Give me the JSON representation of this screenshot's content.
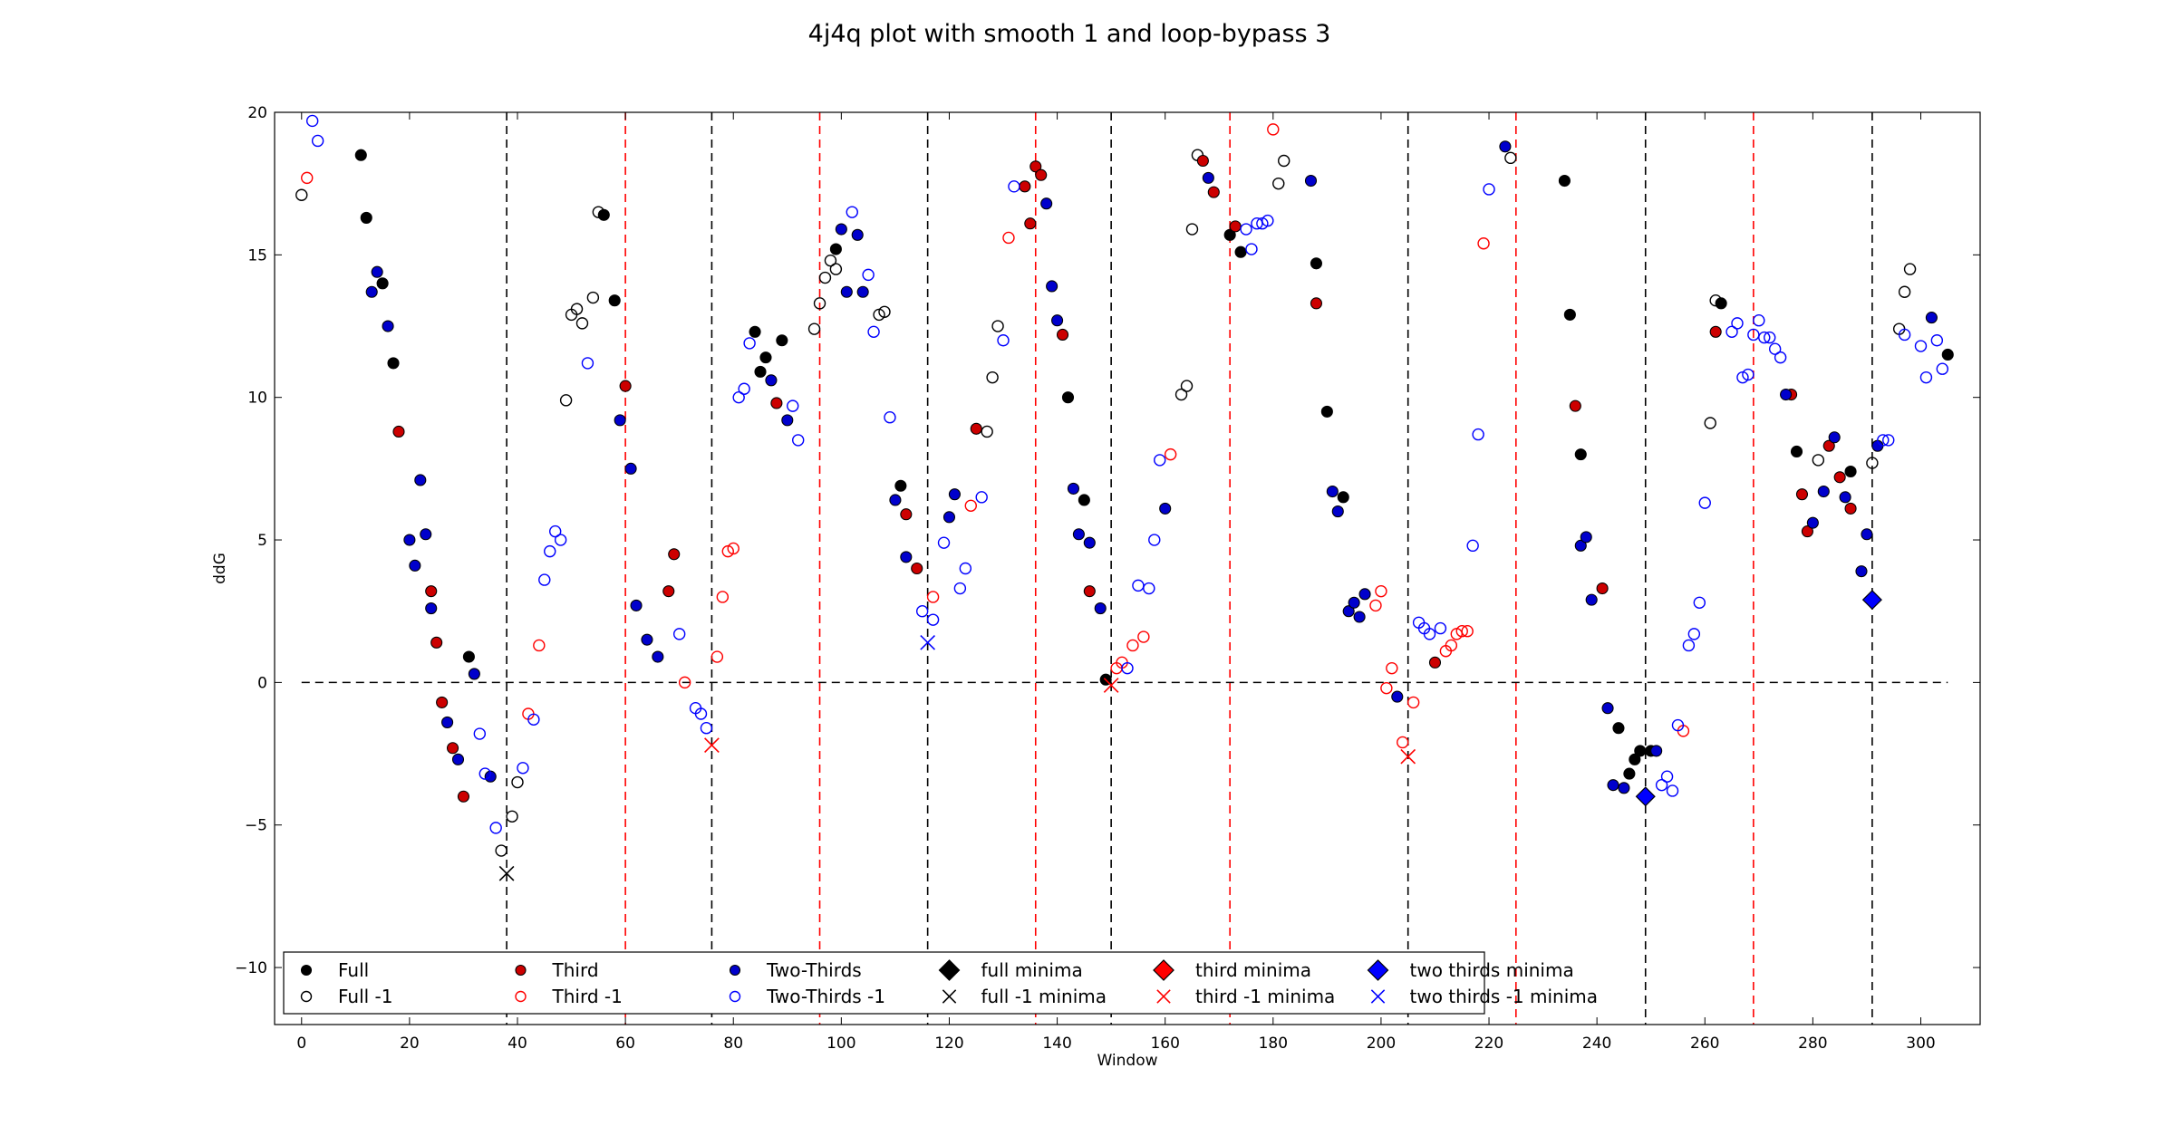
{
  "chart_data": {
    "type": "scatter",
    "title": "4j4q plot with smooth 1 and loop-bypass 3",
    "xlabel": "Window",
    "ylabel": "ddG",
    "xlim": [
      -5,
      311
    ],
    "ylim": [
      -12,
      20
    ],
    "xticks": [
      0,
      20,
      40,
      60,
      80,
      100,
      120,
      140,
      160,
      180,
      200,
      220,
      240,
      260,
      280,
      300
    ],
    "yticks": [
      -10,
      -5,
      0,
      5,
      10,
      15,
      20
    ],
    "grid": false,
    "legend_position": "lower-left",
    "legend_columns": 6,
    "horizontal_line": {
      "y": 0,
      "color": "#000000",
      "style": "dashed"
    },
    "vertical_lines": [
      {
        "x": 38,
        "color": "#000000"
      },
      {
        "x": 60,
        "color": "#ff0000"
      },
      {
        "x": 76,
        "color": "#000000"
      },
      {
        "x": 96,
        "color": "#ff0000"
      },
      {
        "x": 116,
        "color": "#000000"
      },
      {
        "x": 136,
        "color": "#ff0000"
      },
      {
        "x": 150,
        "color": "#000000"
      },
      {
        "x": 172,
        "color": "#ff0000"
      },
      {
        "x": 205,
        "color": "#000000"
      },
      {
        "x": 225,
        "color": "#ff0000"
      },
      {
        "x": 249,
        "color": "#000000"
      },
      {
        "x": 269,
        "color": "#ff0000"
      },
      {
        "x": 291,
        "color": "#000000"
      }
    ],
    "series": [
      {
        "name": "Full",
        "color": "#000000",
        "marker": "filled-circle",
        "points": [
          [
            11,
            18.5
          ],
          [
            12,
            16.3
          ],
          [
            15,
            14
          ],
          [
            17,
            11.2
          ],
          [
            31,
            0.9
          ],
          [
            56,
            16.4
          ],
          [
            58,
            13.4
          ],
          [
            84,
            12.3
          ],
          [
            85,
            10.9
          ],
          [
            86,
            11.4
          ],
          [
            89,
            12
          ],
          [
            99,
            15.2
          ],
          [
            111,
            6.9
          ],
          [
            142,
            10
          ],
          [
            145,
            6.4
          ],
          [
            149,
            0.1
          ],
          [
            172,
            15.7
          ],
          [
            174,
            15.1
          ],
          [
            188,
            14.7
          ],
          [
            190,
            9.5
          ],
          [
            193,
            6.5
          ],
          [
            234,
            17.6
          ],
          [
            235,
            12.9
          ],
          [
            237,
            8
          ],
          [
            244,
            -1.6
          ],
          [
            246,
            -3.2
          ],
          [
            247,
            -2.7
          ],
          [
            248,
            -2.4
          ],
          [
            250,
            -2.4
          ],
          [
            263,
            13.3
          ],
          [
            277,
            8.1
          ],
          [
            287,
            7.4
          ],
          [
            305,
            11.5
          ]
        ]
      },
      {
        "name": "Full -1",
        "color": "#000000",
        "marker": "open-circle",
        "points": [
          [
            0,
            17.1
          ],
          [
            37,
            -5.9
          ],
          [
            39,
            -4.7
          ],
          [
            40,
            -3.5
          ],
          [
            49,
            9.9
          ],
          [
            50,
            12.9
          ],
          [
            51,
            13.1
          ],
          [
            52,
            12.6
          ],
          [
            54,
            13.5
          ],
          [
            55,
            16.5
          ],
          [
            95,
            12.4
          ],
          [
            96,
            13.3
          ],
          [
            97,
            14.2
          ],
          [
            98,
            14.8
          ],
          [
            99,
            14.5
          ],
          [
            107,
            12.9
          ],
          [
            108,
            13
          ],
          [
            127,
            8.8
          ],
          [
            128,
            10.7
          ],
          [
            129,
            12.5
          ],
          [
            163,
            10.1
          ],
          [
            164,
            10.4
          ],
          [
            165,
            15.9
          ],
          [
            166,
            18.5
          ],
          [
            181,
            17.5
          ],
          [
            182,
            18.3
          ],
          [
            224,
            18.4
          ],
          [
            261,
            9.1
          ],
          [
            262,
            13.4
          ],
          [
            281,
            7.8
          ],
          [
            291,
            7.7
          ],
          [
            296,
            12.4
          ],
          [
            297,
            13.7
          ],
          [
            298,
            14.5
          ]
        ]
      },
      {
        "name": "Third",
        "color": "#cc0000",
        "marker": "filled-circle",
        "points": [
          [
            18,
            8.8
          ],
          [
            24,
            3.2
          ],
          [
            25,
            1.4
          ],
          [
            26,
            -0.7
          ],
          [
            28,
            -2.3
          ],
          [
            30,
            -4
          ],
          [
            60,
            10.4
          ],
          [
            68,
            3.2
          ],
          [
            69,
            4.5
          ],
          [
            88,
            9.8
          ],
          [
            112,
            5.9
          ],
          [
            114,
            4
          ],
          [
            125,
            8.9
          ],
          [
            134,
            17.4
          ],
          [
            135,
            16.1
          ],
          [
            136,
            18.1
          ],
          [
            137,
            17.8
          ],
          [
            141,
            12.2
          ],
          [
            146,
            3.2
          ],
          [
            167,
            18.3
          ],
          [
            169,
            17.2
          ],
          [
            173,
            16
          ],
          [
            188,
            13.3
          ],
          [
            210,
            0.7
          ],
          [
            236,
            9.7
          ],
          [
            241,
            3.3
          ],
          [
            262,
            12.3
          ],
          [
            276,
            10.1
          ],
          [
            278,
            6.6
          ],
          [
            279,
            5.3
          ],
          [
            283,
            8.3
          ],
          [
            285,
            7.2
          ],
          [
            287,
            6.1
          ]
        ]
      },
      {
        "name": "Third -1",
        "color": "#ff0000",
        "marker": "open-circle",
        "points": [
          [
            1,
            17.7
          ],
          [
            42,
            -1.1
          ],
          [
            44,
            1.3
          ],
          [
            71,
            0
          ],
          [
            77,
            0.9
          ],
          [
            78,
            3
          ],
          [
            79,
            4.6
          ],
          [
            80,
            4.7
          ],
          [
            117,
            3
          ],
          [
            124,
            6.2
          ],
          [
            131,
            15.6
          ],
          [
            151,
            0.5
          ],
          [
            152,
            0.7
          ],
          [
            154,
            1.3
          ],
          [
            156,
            1.6
          ],
          [
            161,
            8
          ],
          [
            180,
            19.4
          ],
          [
            199,
            2.7
          ],
          [
            200,
            3.2
          ],
          [
            201,
            -0.2
          ],
          [
            202,
            0.5
          ],
          [
            204,
            -2.1
          ],
          [
            206,
            -0.7
          ],
          [
            212,
            1.1
          ],
          [
            213,
            1.3
          ],
          [
            214,
            1.7
          ],
          [
            215,
            1.8
          ],
          [
            216,
            1.8
          ],
          [
            219,
            15.4
          ],
          [
            256,
            -1.7
          ]
        ]
      },
      {
        "name": "Two-Thirds",
        "color": "#0000cc",
        "marker": "filled-circle",
        "points": [
          [
            13,
            13.7
          ],
          [
            14,
            14.4
          ],
          [
            16,
            12.5
          ],
          [
            20,
            5
          ],
          [
            21,
            4.1
          ],
          [
            22,
            7.1
          ],
          [
            23,
            5.2
          ],
          [
            24,
            2.6
          ],
          [
            27,
            -1.4
          ],
          [
            29,
            -2.7
          ],
          [
            32,
            0.3
          ],
          [
            35,
            -3.3
          ],
          [
            59,
            9.2
          ],
          [
            61,
            7.5
          ],
          [
            62,
            2.7
          ],
          [
            64,
            1.5
          ],
          [
            66,
            0.9
          ],
          [
            87,
            10.6
          ],
          [
            90,
            9.2
          ],
          [
            100,
            15.9
          ],
          [
            101,
            13.7
          ],
          [
            103,
            15.7
          ],
          [
            104,
            13.7
          ],
          [
            110,
            6.4
          ],
          [
            112,
            4.4
          ],
          [
            120,
            5.8
          ],
          [
            121,
            6.6
          ],
          [
            138,
            16.8
          ],
          [
            139,
            13.9
          ],
          [
            140,
            12.7
          ],
          [
            143,
            6.8
          ],
          [
            144,
            5.2
          ],
          [
            146,
            4.9
          ],
          [
            148,
            2.6
          ],
          [
            160,
            6.1
          ],
          [
            168,
            17.7
          ],
          [
            187,
            17.6
          ],
          [
            191,
            6.7
          ],
          [
            192,
            6
          ],
          [
            194,
            2.5
          ],
          [
            195,
            2.8
          ],
          [
            196,
            2.3
          ],
          [
            197,
            3.1
          ],
          [
            203,
            -0.5
          ],
          [
            223,
            18.8
          ],
          [
            242,
            -0.9
          ],
          [
            243,
            -3.6
          ],
          [
            245,
            -3.7
          ],
          [
            251,
            -2.4
          ],
          [
            237,
            4.8
          ],
          [
            238,
            5.1
          ],
          [
            239,
            2.9
          ],
          [
            275,
            10.1
          ],
          [
            280,
            5.6
          ],
          [
            282,
            6.7
          ],
          [
            284,
            8.6
          ],
          [
            286,
            6.5
          ],
          [
            289,
            3.9
          ],
          [
            290,
            5.2
          ],
          [
            292,
            8.3
          ],
          [
            302,
            12.8
          ]
        ]
      },
      {
        "name": "Two-Thirds -1",
        "color": "#0000ff",
        "marker": "open-circle",
        "points": [
          [
            2,
            19.7
          ],
          [
            3,
            19
          ],
          [
            33,
            -1.8
          ],
          [
            34,
            -3.2
          ],
          [
            36,
            -5.1
          ],
          [
            41,
            -3
          ],
          [
            43,
            -1.3
          ],
          [
            45,
            3.6
          ],
          [
            46,
            4.6
          ],
          [
            47,
            5.3
          ],
          [
            48,
            5
          ],
          [
            53,
            11.2
          ],
          [
            70,
            1.7
          ],
          [
            73,
            -0.9
          ],
          [
            74,
            -1.1
          ],
          [
            75,
            -1.6
          ],
          [
            81,
            10
          ],
          [
            82,
            10.3
          ],
          [
            83,
            11.9
          ],
          [
            91,
            9.7
          ],
          [
            92,
            8.5
          ],
          [
            102,
            16.5
          ],
          [
            105,
            14.3
          ],
          [
            106,
            12.3
          ],
          [
            109,
            9.3
          ],
          [
            115,
            2.5
          ],
          [
            117,
            2.2
          ],
          [
            119,
            4.9
          ],
          [
            122,
            3.3
          ],
          [
            123,
            4
          ],
          [
            126,
            6.5
          ],
          [
            130,
            12
          ],
          [
            132,
            17.4
          ],
          [
            153,
            0.5
          ],
          [
            155,
            3.4
          ],
          [
            157,
            3.3
          ],
          [
            158,
            5
          ],
          [
            159,
            7.8
          ],
          [
            175,
            15.9
          ],
          [
            176,
            15.2
          ],
          [
            177,
            16.1
          ],
          [
            178,
            16.1
          ],
          [
            179,
            16.2
          ],
          [
            207,
            2.1
          ],
          [
            208,
            1.9
          ],
          [
            209,
            1.7
          ],
          [
            211,
            1.9
          ],
          [
            217,
            4.8
          ],
          [
            218,
            8.7
          ],
          [
            220,
            17.3
          ],
          [
            252,
            -3.6
          ],
          [
            253,
            -3.3
          ],
          [
            254,
            -3.8
          ],
          [
            255,
            -1.5
          ],
          [
            257,
            1.3
          ],
          [
            258,
            1.7
          ],
          [
            259,
            2.8
          ],
          [
            260,
            6.3
          ],
          [
            265,
            12.3
          ],
          [
            266,
            12.6
          ],
          [
            267,
            10.7
          ],
          [
            268,
            10.8
          ],
          [
            269,
            12.2
          ],
          [
            270,
            12.7
          ],
          [
            271,
            12.1
          ],
          [
            272,
            12.1
          ],
          [
            273,
            11.7
          ],
          [
            274,
            11.4
          ],
          [
            293,
            8.5
          ],
          [
            294,
            8.5
          ],
          [
            297,
            12.2
          ],
          [
            300,
            11.8
          ],
          [
            301,
            10.7
          ],
          [
            303,
            12
          ],
          [
            304,
            11
          ]
        ]
      },
      {
        "name": "full minima",
        "color": "#000000",
        "marker": "filled-diamond",
        "points": []
      },
      {
        "name": "full -1 minima",
        "color": "#000000",
        "marker": "x",
        "points": [
          [
            38,
            -6.7
          ]
        ]
      },
      {
        "name": "third minima",
        "color": "#ff0000",
        "marker": "filled-diamond",
        "points": []
      },
      {
        "name": "third -1 minima",
        "color": "#ff0000",
        "marker": "x",
        "points": [
          [
            76,
            -2.2
          ],
          [
            150,
            -0.1
          ],
          [
            205,
            -2.6
          ]
        ]
      },
      {
        "name": "two thirds minima",
        "color": "#0000ff",
        "marker": "filled-diamond",
        "points": [
          [
            249,
            -4
          ],
          [
            291,
            2.9
          ]
        ]
      },
      {
        "name": "two thirds -1 minima",
        "color": "#0000ff",
        "marker": "x",
        "points": [
          [
            116,
            1.4
          ]
        ]
      }
    ]
  }
}
